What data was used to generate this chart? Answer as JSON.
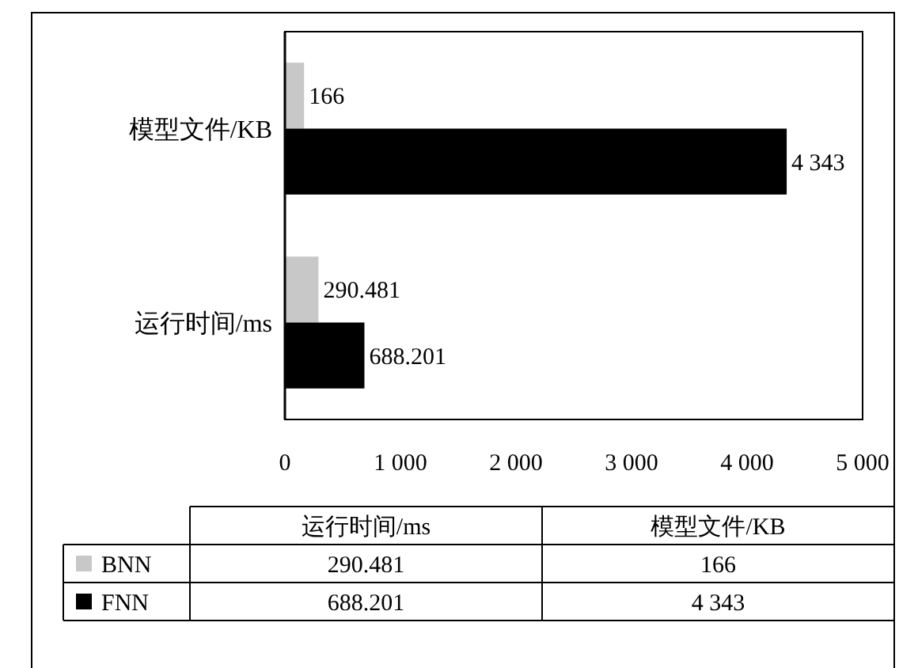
{
  "chart_data": {
    "type": "bar",
    "orientation": "horizontal",
    "categories": [
      "模型文件/KB",
      "运行时间/ms"
    ],
    "series": [
      {
        "name": "BNN",
        "color": "#c8c8c8",
        "values": [
          166,
          290.481
        ],
        "value_labels": [
          "166",
          "290.481"
        ]
      },
      {
        "name": "FNN",
        "color": "#000000",
        "values": [
          4343,
          688.201
        ],
        "value_labels": [
          "4 343",
          "688.201"
        ]
      }
    ],
    "xlim": [
      0,
      5000
    ],
    "xticks": [
      0,
      {
        "value": 1000,
        "label": "1 000"
      },
      {
        "value": 2000,
        "label": "2 000"
      },
      {
        "value": 3000,
        "label": "3 000"
      },
      {
        "value": 4000,
        "label": "4 000"
      },
      {
        "value": 5000,
        "label": "5 000"
      }
    ],
    "grid": false,
    "legend": "bottom"
  }
}
